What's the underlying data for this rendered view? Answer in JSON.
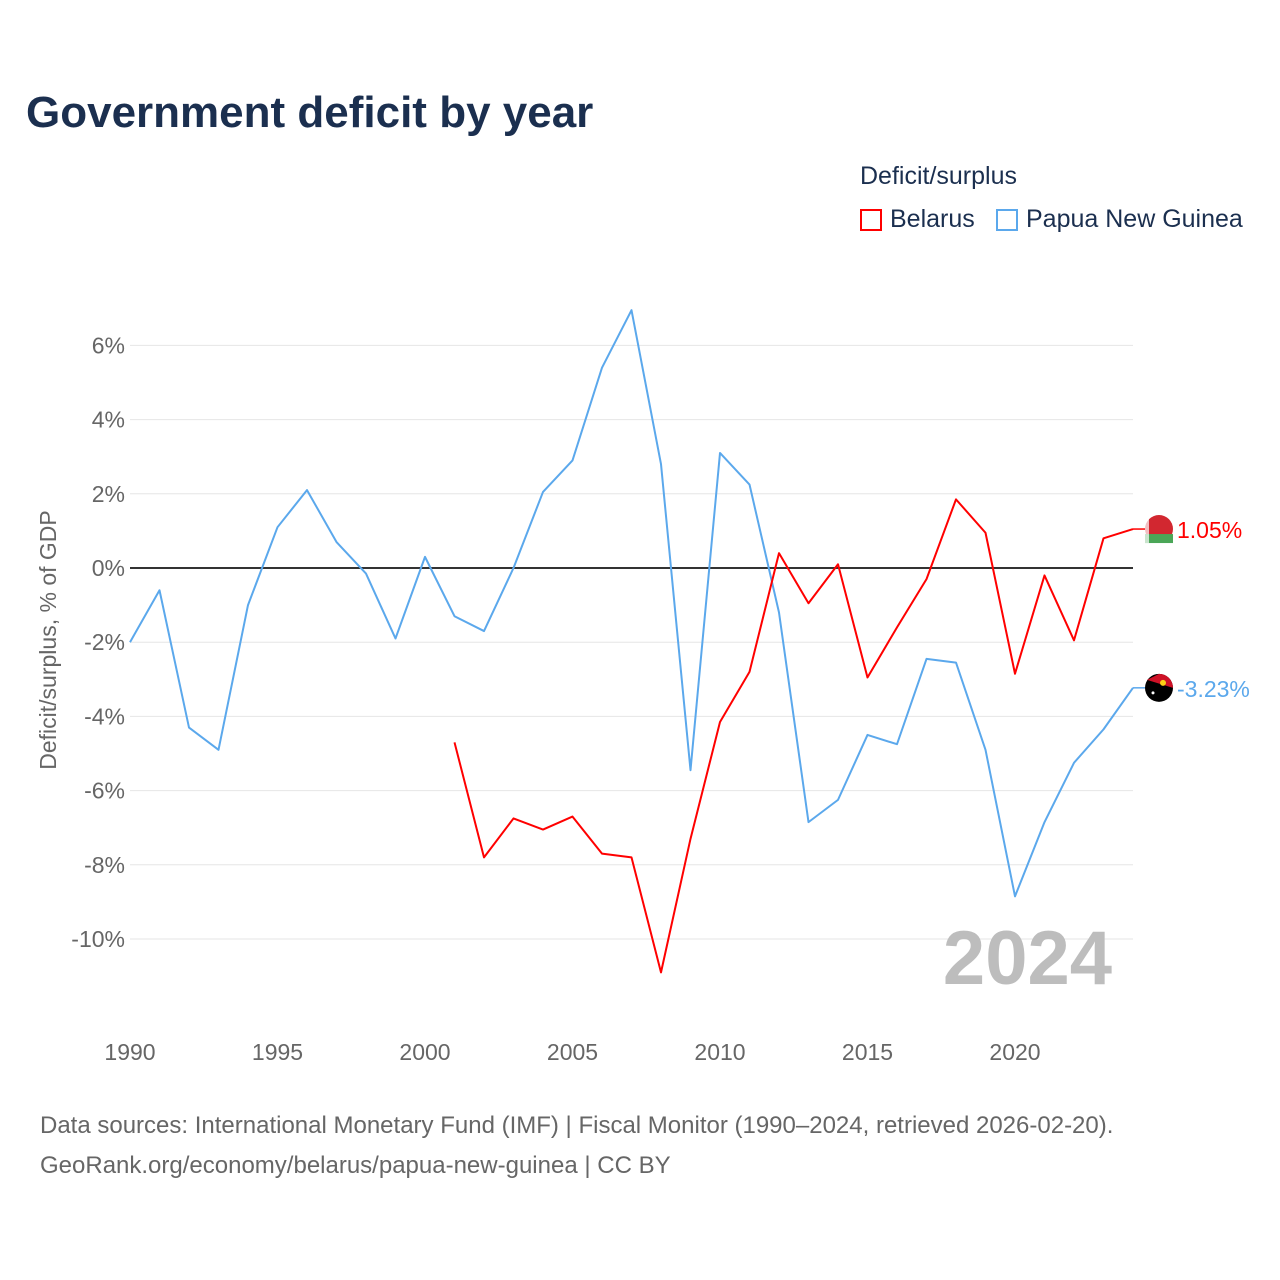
{
  "title": "Government deficit by year",
  "legend": {
    "title": "Deficit/surplus",
    "items": [
      {
        "label": "Belarus",
        "color": "#ff0000"
      },
      {
        "label": "Papua New Guinea",
        "color": "#5ba8ec"
      }
    ]
  },
  "source_line1": "Data sources: International Monetary Fund (IMF) | Fiscal Monitor (1990–2024, retrieved 2026-02-20).",
  "source_line2": "GeoRank.org/economy/belarus/papua-new-guinea | CC BY",
  "chart_data": {
    "type": "line",
    "title": "Government deficit by year",
    "ylabel": "Deficit/surplus, % of GDP",
    "xlabel": "",
    "xlim": [
      1990,
      2024
    ],
    "ylim": [
      -11.5,
      7
    ],
    "x_ticks": [
      1990,
      1995,
      2000,
      2005,
      2010,
      2015,
      2020
    ],
    "y_ticks": [
      6,
      4,
      2,
      0,
      -2,
      -4,
      -6,
      -8,
      -10
    ],
    "y_tick_labels": [
      "6%",
      "4%",
      "2%",
      "0%",
      "-2%",
      "-4%",
      "-6%",
      "-8%",
      "-10%"
    ],
    "year_watermark": "2024",
    "series": [
      {
        "name": "Belarus",
        "color": "#ff0000",
        "end_label": "1.05%",
        "x": [
          2001,
          2002,
          2003,
          2004,
          2005,
          2006,
          2007,
          2008,
          2009,
          2010,
          2011,
          2012,
          2013,
          2014,
          2015,
          2016,
          2017,
          2018,
          2019,
          2020,
          2021,
          2022,
          2023,
          2024
        ],
        "values": [
          -4.7,
          -7.8,
          -6.75,
          -7.05,
          -6.7,
          -7.7,
          -7.8,
          -10.9,
          -7.3,
          -4.15,
          -2.8,
          0.4,
          -0.95,
          0.1,
          -2.95,
          -1.6,
          -0.3,
          1.85,
          0.95,
          -2.85,
          -0.2,
          -1.95,
          0.8,
          1.05
        ]
      },
      {
        "name": "Papua New Guinea",
        "color": "#5ba8ec",
        "end_label": "-3.23%",
        "x": [
          1990,
          1991,
          1992,
          1993,
          1994,
          1995,
          1996,
          1997,
          1998,
          1999,
          2000,
          2001,
          2002,
          2003,
          2004,
          2005,
          2006,
          2007,
          2008,
          2009,
          2010,
          2011,
          2012,
          2013,
          2014,
          2015,
          2016,
          2017,
          2018,
          2019,
          2020,
          2021,
          2022,
          2023,
          2024
        ],
        "values": [
          -2.0,
          -0.6,
          -4.3,
          -4.9,
          -1.0,
          1.1,
          2.1,
          0.7,
          -0.15,
          -1.9,
          0.3,
          -1.3,
          -1.7,
          0.0,
          2.05,
          2.9,
          5.4,
          6.95,
          2.8,
          -5.45,
          3.1,
          2.25,
          -1.2,
          -6.85,
          -6.25,
          -4.5,
          -4.75,
          -2.45,
          -2.55,
          -4.9,
          -8.85,
          -6.85,
          -5.25,
          -4.35,
          -3.23
        ]
      }
    ]
  }
}
